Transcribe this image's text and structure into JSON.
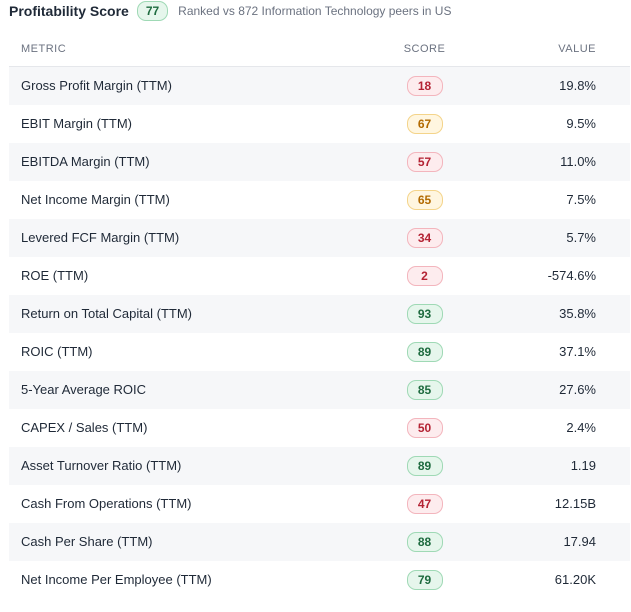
{
  "header": {
    "title": "Profitability Score",
    "score": "77",
    "subtitle": "Ranked vs 872 Information Technology peers in US",
    "score_color": "#1e6b3f"
  },
  "table": {
    "columns": [
      "METRIC",
      "SCORE",
      "VALUE"
    ],
    "rows": [
      {
        "metric": "Gross Profit Margin (TTM)",
        "score": "18",
        "level": "red",
        "value": "19.8%"
      },
      {
        "metric": "EBIT Margin (TTM)",
        "score": "67",
        "level": "yellow",
        "value": "9.5%"
      },
      {
        "metric": "EBITDA Margin (TTM)",
        "score": "57",
        "level": "red",
        "value": "11.0%"
      },
      {
        "metric": "Net Income Margin (TTM)",
        "score": "65",
        "level": "yellow",
        "value": "7.5%"
      },
      {
        "metric": "Levered FCF Margin (TTM)",
        "score": "34",
        "level": "red",
        "value": "5.7%"
      },
      {
        "metric": "ROE (TTM)",
        "score": "2",
        "level": "red",
        "value": "-574.6%"
      },
      {
        "metric": "Return on Total Capital (TTM)",
        "score": "93",
        "level": "green",
        "value": "35.8%"
      },
      {
        "metric": "ROIC (TTM)",
        "score": "89",
        "level": "green",
        "value": "37.1%"
      },
      {
        "metric": "5-Year Average ROIC",
        "score": "85",
        "level": "green",
        "value": "27.6%"
      },
      {
        "metric": "CAPEX / Sales (TTM)",
        "score": "50",
        "level": "red",
        "value": "2.4%"
      },
      {
        "metric": "Asset Turnover Ratio (TTM)",
        "score": "89",
        "level": "green",
        "value": "1.19"
      },
      {
        "metric": "Cash From Operations (TTM)",
        "score": "47",
        "level": "red",
        "value": "12.15B"
      },
      {
        "metric": "Cash Per Share (TTM)",
        "score": "88",
        "level": "green",
        "value": "17.94"
      },
      {
        "metric": "Net Income Per Employee (TTM)",
        "score": "79",
        "level": "green",
        "value": "61.20K"
      }
    ]
  },
  "colors": {
    "red": "#b42334",
    "yellow": "#b26a00",
    "green": "#1e6b3f"
  }
}
